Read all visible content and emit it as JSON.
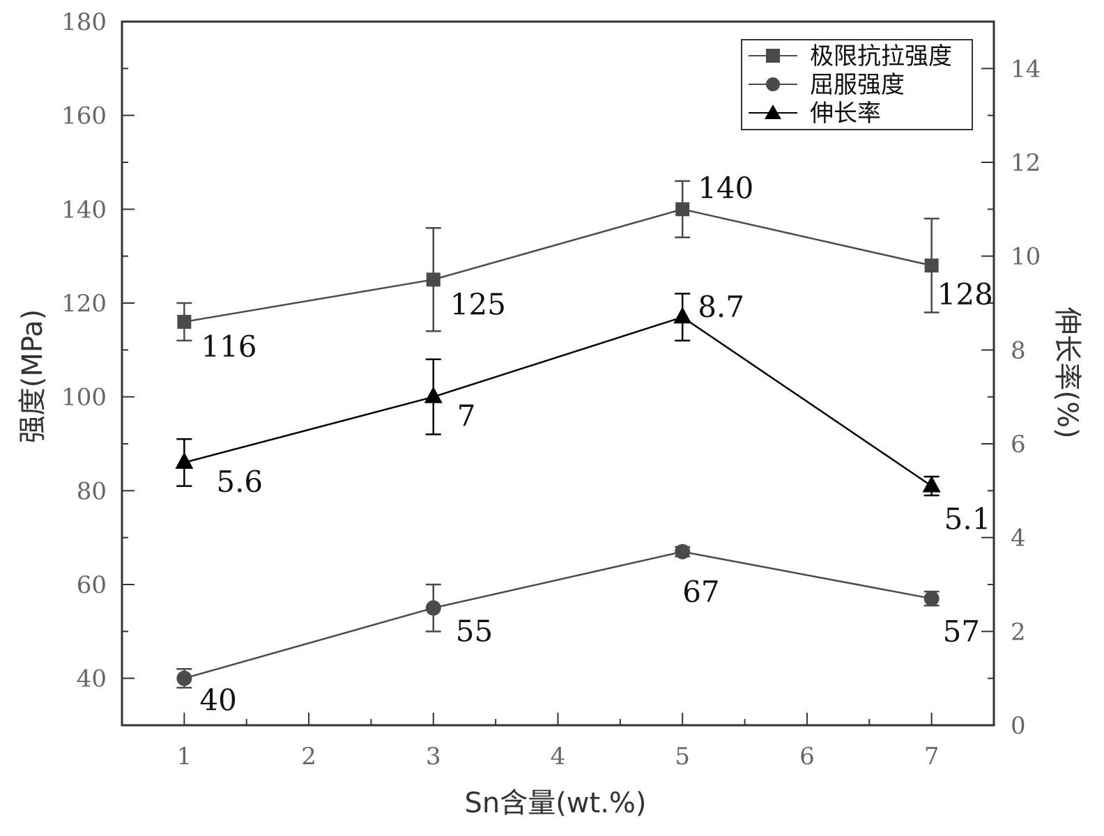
{
  "chart_data": {
    "type": "line",
    "x": [
      1,
      3,
      5,
      7
    ],
    "xlabel": "Sn含量(wt.%)",
    "ylabel": "强度(MPa)",
    "y2label": "伸长率(%)",
    "xlim": [
      0.5,
      7.5
    ],
    "ylim": [
      30,
      180
    ],
    "y2lim": [
      0,
      15
    ],
    "xticks": [
      1,
      2,
      3,
      4,
      5,
      6,
      7
    ],
    "yticks": [
      40,
      60,
      80,
      100,
      120,
      140,
      160,
      180
    ],
    "y2ticks": [
      0,
      2,
      4,
      6,
      8,
      10,
      12,
      14
    ],
    "grid": false,
    "legend_position": "top-right",
    "series": [
      {
        "name": "极限抗拉强度",
        "axis": "left",
        "marker": "square",
        "color": "#4a4a4a",
        "values": [
          116,
          125,
          140,
          128
        ],
        "errors": [
          4,
          11,
          6,
          10
        ],
        "labels": [
          "116",
          "125",
          "140",
          "128"
        ]
      },
      {
        "name": "屈服强度",
        "axis": "left",
        "marker": "circle",
        "color": "#4a4a4a",
        "values": [
          40,
          55,
          67,
          57
        ],
        "errors": [
          2,
          5,
          1,
          1.5
        ],
        "labels": [
          "40",
          "55",
          "67",
          "57"
        ]
      },
      {
        "name": "伸长率",
        "axis": "right",
        "marker": "triangle",
        "color": "#000000",
        "values": [
          5.6,
          7,
          8.7,
          5.1
        ],
        "errors": [
          0.5,
          0.8,
          0.5,
          0.2
        ],
        "labels": [
          "5.6",
          "7",
          "8.7",
          "5.1"
        ]
      }
    ]
  }
}
